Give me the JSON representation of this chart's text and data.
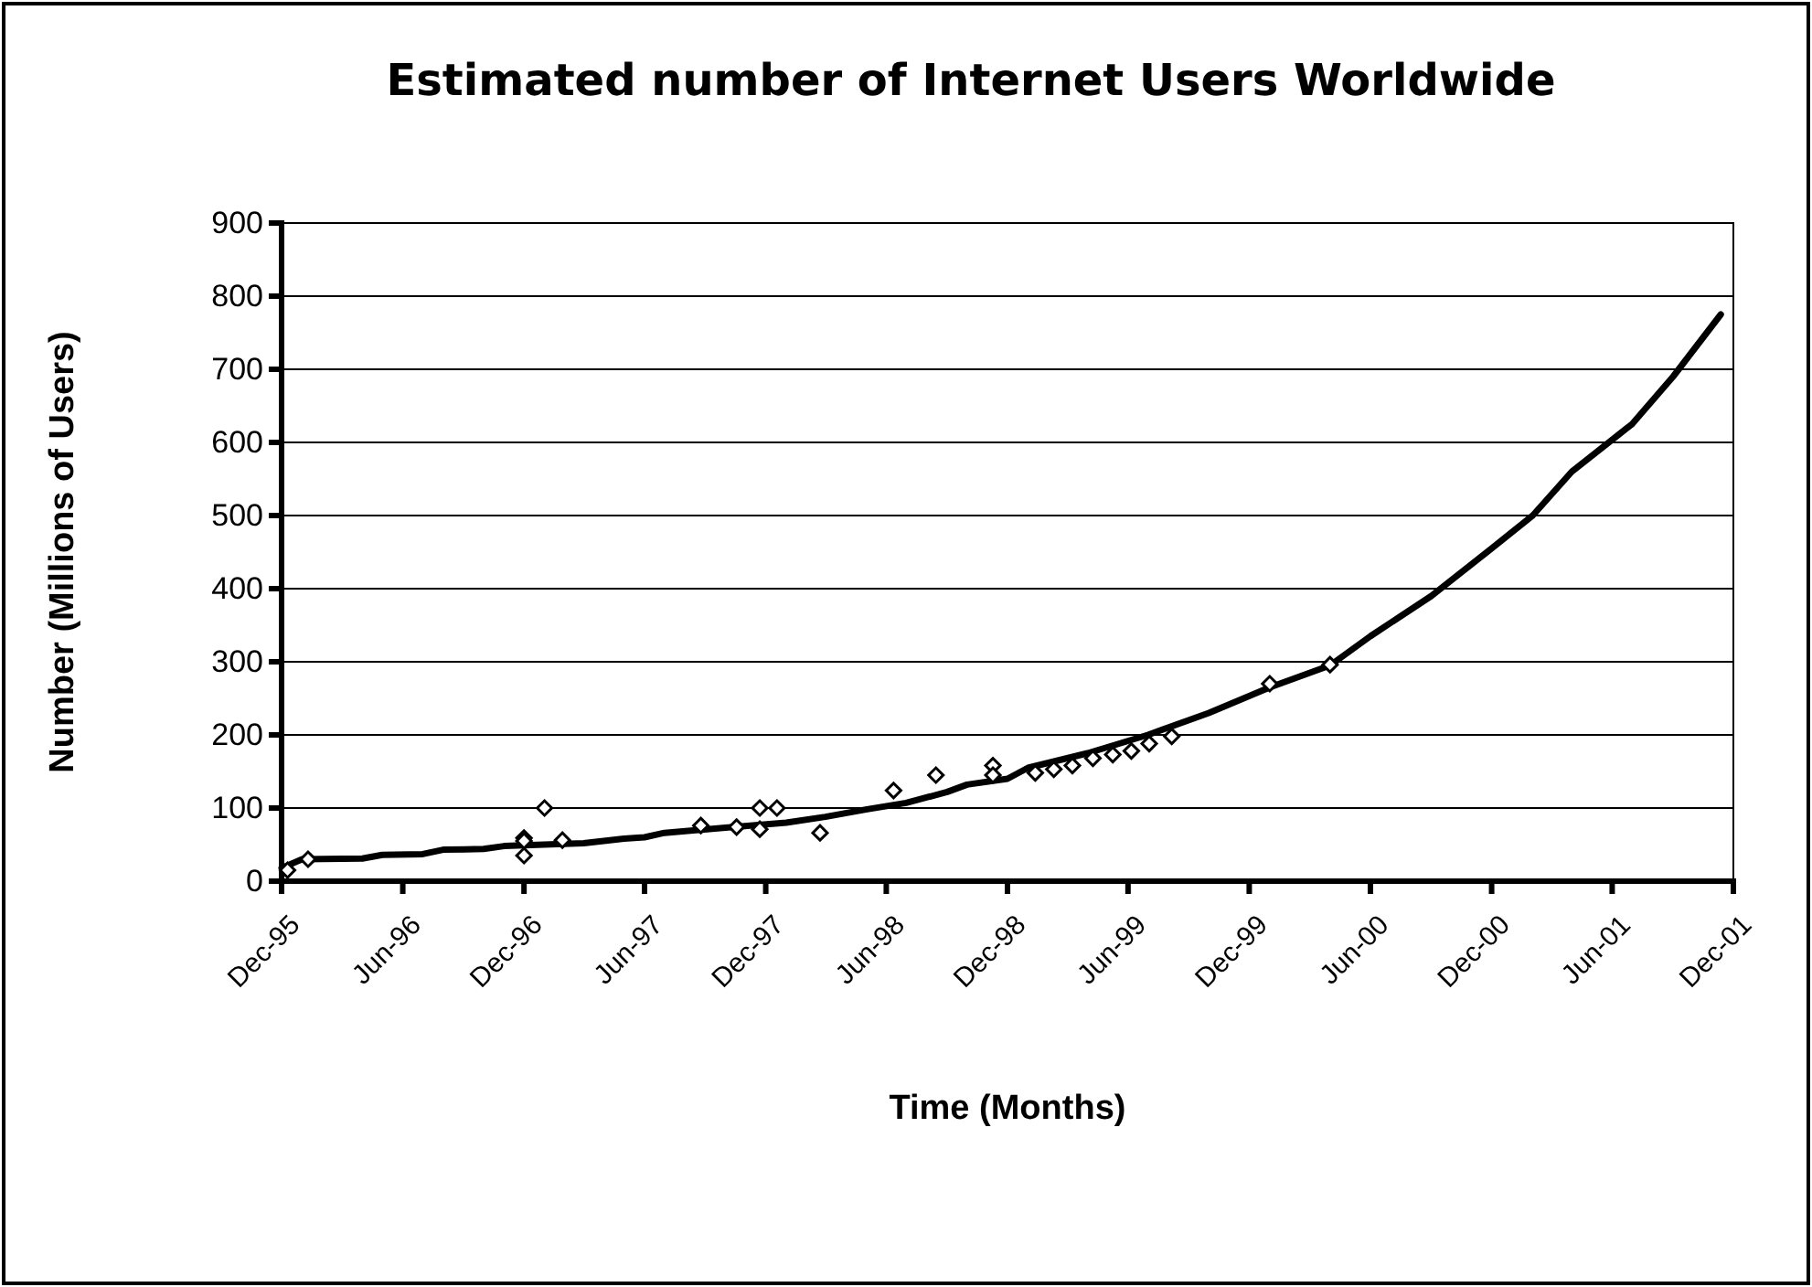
{
  "chart_data": {
    "type": "line",
    "title": "Estimated number of Internet Users Worldwide",
    "xlabel": "Time (Months)",
    "ylabel": "Number (Millions of Users)",
    "xlim": [
      "1995-12",
      "2001-12"
    ],
    "xticks": [
      {
        "value": "1995-12",
        "label": "Dec-95"
      },
      {
        "value": "1996-06",
        "label": "Jun-96"
      },
      {
        "value": "1996-12",
        "label": "Dec-96"
      },
      {
        "value": "1997-06",
        "label": "Jun-97"
      },
      {
        "value": "1997-12",
        "label": "Dec-97"
      },
      {
        "value": "1998-06",
        "label": "Jun-98"
      },
      {
        "value": "1998-12",
        "label": "Dec-98"
      },
      {
        "value": "1999-06",
        "label": "Jun-99"
      },
      {
        "value": "1999-12",
        "label": "Dec-99"
      },
      {
        "value": "2000-06",
        "label": "Jun-00"
      },
      {
        "value": "2000-12",
        "label": "Dec-00"
      },
      {
        "value": "2001-06",
        "label": "Jun-01"
      },
      {
        "value": "2001-12",
        "label": "Dec-01"
      }
    ],
    "ylim": [
      0,
      900
    ],
    "yticks": [
      0,
      100,
      200,
      300,
      400,
      500,
      600,
      700,
      800,
      900
    ],
    "grid": "y",
    "series": [
      {
        "type": "scatter",
        "color": "#000000",
        "marker": "diamond",
        "x": [
          "1995-12-10",
          "1996-01-10",
          "1996-12-01",
          "1996-12-01",
          "1996-12-01",
          "1997-01-01",
          "1997-01-28",
          "1997-08-25",
          "1997-10-18",
          "1997-11-22",
          "1997-11-22",
          "1997-12-18",
          "1998-02-21",
          "1998-06-12",
          "1998-08-15",
          "1998-11-09",
          "1998-11-09",
          "1999-01-12",
          "1999-02-09",
          "1999-03-09",
          "1999-04-09",
          "1999-05-09",
          "1999-06-06",
          "1999-07-03",
          "1999-08-06",
          "2000-01-01",
          "2000-04-01"
        ],
        "values": [
          15,
          30,
          59,
          55,
          35,
          100,
          56,
          76,
          74,
          100,
          71,
          100,
          66,
          124,
          145,
          158,
          145,
          148,
          153,
          158,
          168,
          173,
          178,
          188,
          198,
          270,
          296
        ]
      },
      {
        "type": "line",
        "color": "#000000",
        "marker": "none",
        "line_style": "solid",
        "x": [
          "1995-12",
          "1996-01",
          "1996-04",
          "1996-05",
          "1996-07",
          "1996-08",
          "1996-10",
          "1996-11",
          "1997-03",
          "1997-05",
          "1997-06",
          "1997-07",
          "1997-10",
          "1998-01",
          "1998-03",
          "1998-05",
          "1998-07",
          "1998-09",
          "1998-10",
          "1998-12",
          "1999-01",
          "1999-04",
          "1999-07",
          "1999-10",
          "2000-01",
          "2000-04",
          "2000-06",
          "2000-09",
          "2000-12",
          "2001-02",
          "2001-04",
          "2001-07",
          "2001-09",
          "2001-11-12"
        ],
        "values": [
          18,
          30,
          31,
          36,
          37,
          43,
          44,
          48,
          52,
          58,
          60,
          66,
          73,
          80,
          88,
          98,
          107,
          122,
          132,
          140,
          155,
          175,
          200,
          230,
          265,
          295,
          335,
          390,
          455,
          500,
          560,
          625,
          690,
          775
        ]
      }
    ]
  }
}
